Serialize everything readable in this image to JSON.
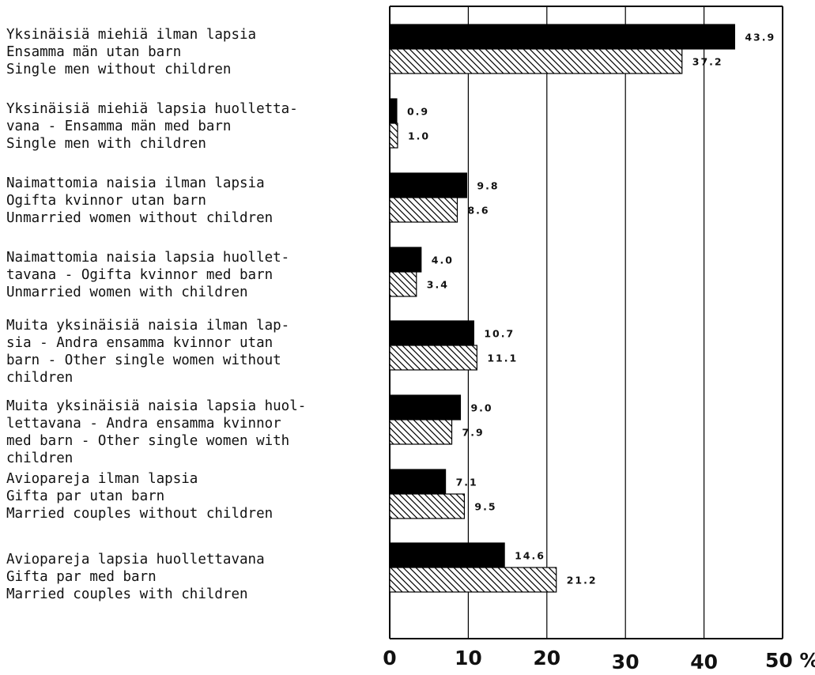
{
  "chart_data": {
    "type": "bar",
    "orientation": "horizontal",
    "categories": [
      [
        "Yksinäisiä miehiä ilman lapsia",
        "Ensamma män utan barn",
        "Single men without children"
      ],
      [
        "Yksinäisiä miehiä lapsia huolletta-",
        "vana - Ensamma män med barn",
        "Single men with children"
      ],
      [
        "Naimattomia naisia ilman lapsia",
        "Ogifta kvinnor utan barn",
        "Unmarried women without children"
      ],
      [
        "Naimattomia naisia lapsia huollet-",
        "tavana - Ogifta kvinnor med barn",
        "Unmarried women with children"
      ],
      [
        "Muita yksinäisiä naisia ilman lap-",
        "sia - Andra ensamma kvinnor utan",
        "barn - Other single women without",
        "children"
      ],
      [
        "Muita yksinäisiä naisia lapsia huol-",
        "lettavana - Andra ensamma kvinnor",
        "med barn - Other single women with",
        "children"
      ],
      [
        "Aviopareja ilman lapsia",
        "Gifta par utan barn",
        "Married couples without children"
      ],
      [
        "Aviopareja lapsia huollettavana",
        "Gifta par med barn",
        "Married couples with children"
      ]
    ],
    "series": [
      {
        "style": "solid",
        "color": "#000000",
        "values": [
          43.9,
          0.9,
          9.8,
          4.0,
          10.7,
          9.0,
          7.1,
          14.6
        ],
        "labels": [
          "43.9",
          "0.9",
          "9.8",
          "4.0",
          "10.7",
          "9.0",
          "7.1",
          "14.6"
        ]
      },
      {
        "style": "hatched",
        "color": "#000000",
        "values": [
          37.2,
          1.0,
          8.6,
          3.4,
          11.1,
          7.9,
          9.5,
          21.2
        ],
        "labels": [
          "37.2",
          "1.0",
          "8.6",
          "3.4",
          "11.1",
          "7.9",
          "9.5",
          "21.2"
        ]
      }
    ],
    "xlim": [
      0,
      50
    ],
    "xticks": [
      0,
      10,
      20,
      30,
      40,
      50
    ],
    "xtick_labels": [
      "0",
      "10",
      "20",
      "30",
      "40",
      "50 %"
    ],
    "grid": true,
    "legend": "none"
  }
}
